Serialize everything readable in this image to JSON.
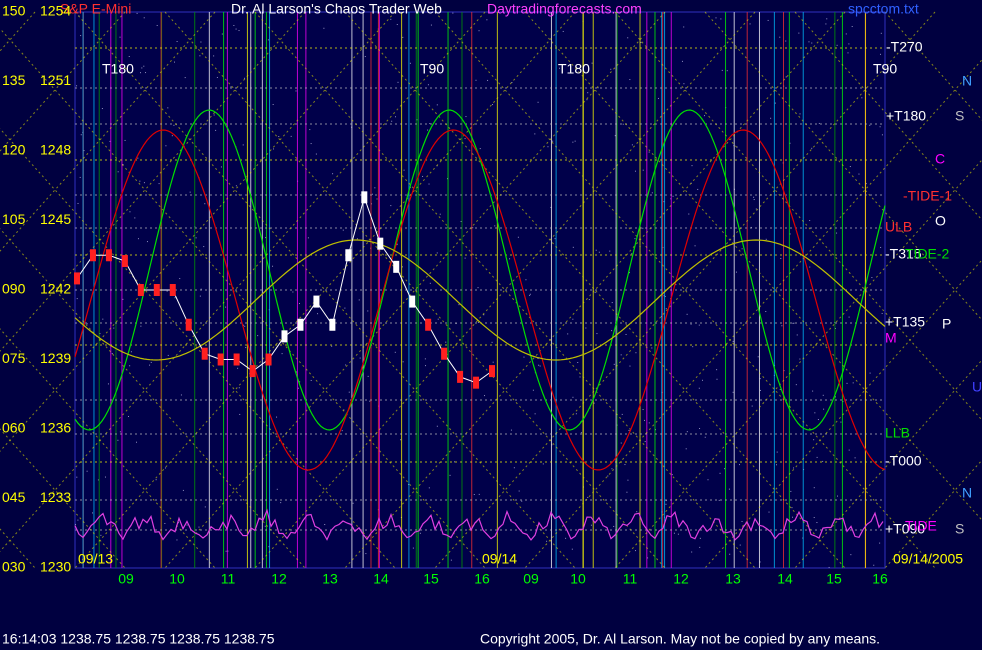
{
  "header": {
    "symbol": "S&P E-Mini",
    "title": "Dr. Al Larson's Chaos Trader Web",
    "site": "Daytradingforecasts.com",
    "file": "spcctom.txt"
  },
  "left_axis": [
    {
      "index": "150",
      "price": 1254
    },
    {
      "index": "135",
      "price": 1251
    },
    {
      "index": "120",
      "price": 1248
    },
    {
      "index": "105",
      "price": 1245
    },
    {
      "index": "090",
      "price": 1242
    },
    {
      "index": "075",
      "price": 1239
    },
    {
      "index": "060",
      "price": 1236
    },
    {
      "index": "045",
      "price": 1233
    },
    {
      "index": "030",
      "price": 1230
    }
  ],
  "date_labels": [
    "09/13",
    "09/14",
    "09/14/2005"
  ],
  "hours": [
    "09",
    "10",
    "11",
    "12",
    "13",
    "14",
    "15",
    "16",
    "09",
    "10",
    "11",
    "12",
    "13",
    "14",
    "15",
    "16"
  ],
  "top_labels": [
    "T180",
    "T90",
    "T180",
    "T90"
  ],
  "right_labels": [
    "-T270",
    "+T180",
    "-TIDE-1",
    "ULB",
    "-T315",
    "TIDE-2",
    "+T135",
    "M",
    "LLB",
    "-T000",
    "+T090",
    "TIDE"
  ],
  "side_letters": [
    "N",
    "S",
    "C",
    "O",
    "P",
    "U",
    "N",
    "S"
  ],
  "price": [
    1242.5,
    1243.5,
    1243.5,
    1243.25,
    1242,
    1242,
    1242,
    1240.5,
    1239.25,
    1239,
    1239,
    1238.5,
    1239,
    1240,
    1240.5,
    1241.5,
    1240.5,
    1243.5,
    1246,
    1244,
    1243,
    1241.5,
    1240.5,
    1239.25,
    1238.25,
    1238,
    1238.5
  ],
  "footer": {
    "status": "16:14:03  1238.75 1238.75 1238.75 1238.75",
    "copyright": "Copyright 2005, Dr. Al Larson. May not be copied by any means."
  }
}
